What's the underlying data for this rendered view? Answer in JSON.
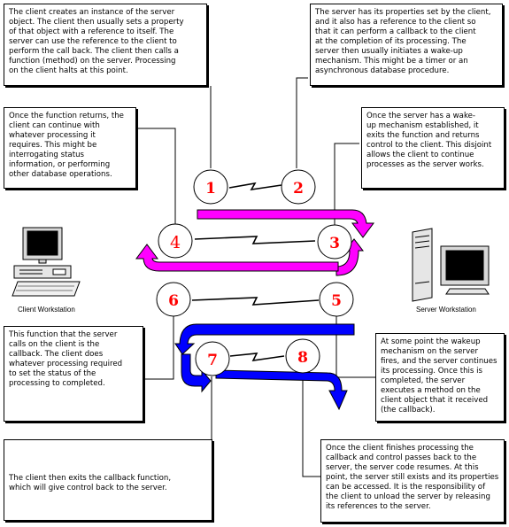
{
  "notes": {
    "n1": "The client creates an instance of the server\nobject.  The client then usually sets a property\nof that object with a reference to itself.  The\nserver can use the reference to the client to\nperform the call back.  The client then calls a\nfunction (method) on the server.  Processing\non the client halts at this point.",
    "n2": "The server has its properties set by the client,\nand it also has a reference to the client so\nthat it can perform a callback to the client\nat the completion of its processing.  The\nserver then usually initiates a wake-up\nmechanism.  This might be a timer or an\nasynchronous database procedure.",
    "n3": "Once the function returns, the\nclient can continue with\nwhatever processing it\nrequires.  This might be\ninterrogating status\ninformation, or performing\nother database operations.",
    "n4": "Once the server has a wake-\nup mechanism established, it\nexits the function and returns\ncontrol to the client.  This disjoint\nallows the client to continue\nprocesses as the server works.",
    "n5": "This function that the server\ncalls on the client is the\ncallback.  The client does\nwhatever processing required\nto set the status of the\nprocessing to completed.",
    "n6": "At some point the wakeup\nmechanism on the server\nfires, and the server continues\nits processing.  Once this is\ncompleted, the server\nexecutes a method on the\nclient object that it received\n(the callback).",
    "n7": "The client then exits the callback function,\nwhich will give control back to the server.",
    "n8": "Once the client finishes processing the\ncallback and control passes back to the\nserver, the server code resumes.  At this\npoint, the server still exists and its properties\ncan be accessed.  It is the responsibility of\nthe client to unload the server by releasing\nits references to the server."
  },
  "steps": [
    "1",
    "2",
    "3",
    "4",
    "5",
    "6",
    "7",
    "8"
  ],
  "captions": {
    "client": "Client Workstation",
    "server": "Server Workstation"
  },
  "colors": {
    "magenta_arrow": "#ff00ff",
    "blue_arrow": "#0000ff",
    "step_number": "#ff0000",
    "outline": "#000000"
  },
  "icons": {
    "client": "desktop-computer-icon",
    "server": "tower-computer-icon"
  }
}
